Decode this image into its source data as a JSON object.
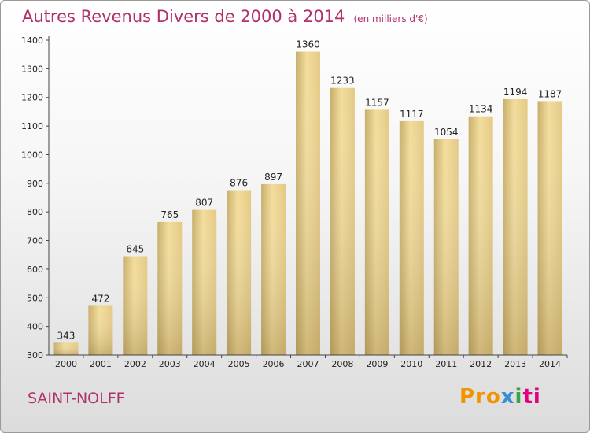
{
  "title": "Autres Revenus Divers de 2000 à 2014",
  "subtitle": "(en milliers d'€)",
  "location": "SAINT-NOLFF",
  "logo": {
    "p1": "Pro",
    "p2": "x",
    "p3": "i",
    "p4": "ti"
  },
  "colors": {
    "title": "#b0306a",
    "bar_light": "#f6e3a6",
    "bar_dark": "#c8ae6a",
    "axis": "#444444"
  },
  "chart_data": {
    "type": "bar",
    "categories": [
      "2000",
      "2001",
      "2002",
      "2003",
      "2004",
      "2005",
      "2006",
      "2007",
      "2008",
      "2009",
      "2010",
      "2011",
      "2012",
      "2013",
      "2014"
    ],
    "values": [
      343,
      472,
      645,
      765,
      807,
      876,
      897,
      1360,
      1233,
      1157,
      1117,
      1054,
      1134,
      1194,
      1187
    ],
    "title": "Autres Revenus Divers de 2000 à 2014",
    "ylim": [
      300,
      1400
    ],
    "yticks": [
      300,
      400,
      500,
      600,
      700,
      800,
      900,
      1000,
      1100,
      1200,
      1300,
      1400
    ],
    "grid": false
  }
}
